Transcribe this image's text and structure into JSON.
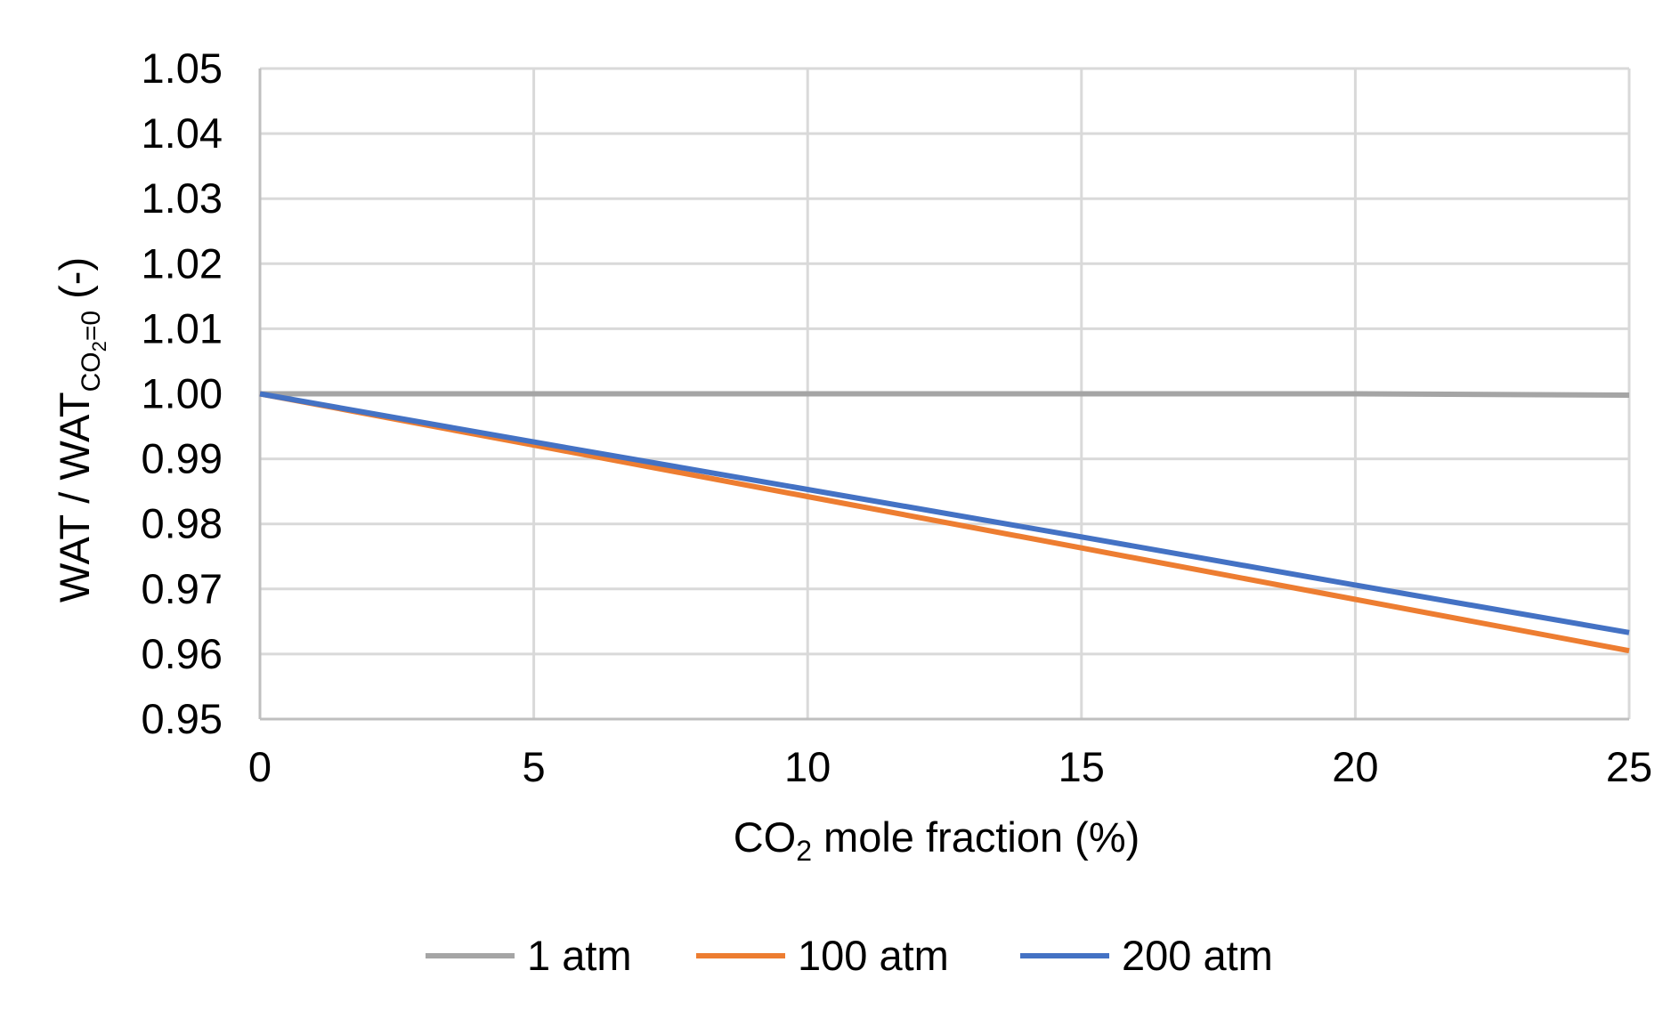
{
  "chart_data": {
    "type": "line",
    "title": "",
    "xlabel": {
      "prefix": "CO",
      "subscript": "2",
      "suffix": " mole fraction (%)"
    },
    "ylabel": {
      "prefix": "WAT / WAT",
      "subscript_main": "CO",
      "subscript_sub": "2",
      "subscript_tail": "=0",
      "suffix": " (-)"
    },
    "xlim": [
      0,
      25
    ],
    "ylim": [
      0.95,
      1.05
    ],
    "x_ticks": [
      0,
      5,
      10,
      15,
      20,
      25
    ],
    "x_tick_labels": [
      "0",
      "5",
      "10",
      "15",
      "20",
      "25"
    ],
    "y_ticks": [
      0.95,
      0.96,
      0.97,
      0.98,
      0.99,
      1.0,
      1.01,
      1.02,
      1.03,
      1.04,
      1.05
    ],
    "y_tick_labels": [
      "0.95",
      "0.96",
      "0.97",
      "0.98",
      "0.99",
      "1.00",
      "1.01",
      "1.02",
      "1.03",
      "1.04",
      "1.05"
    ],
    "grid": true,
    "legend_position": "bottom",
    "series": [
      {
        "name": "1 atm",
        "color": "#A5A5A5",
        "x": [
          0,
          5,
          10,
          15,
          20,
          25
        ],
        "values": [
          1.0,
          1.0,
          1.0,
          1.0,
          1.0,
          0.9998
        ]
      },
      {
        "name": "100 atm",
        "color": "#ED7D31",
        "x": [
          0,
          5,
          10,
          15,
          20,
          25
        ],
        "values": [
          1.0,
          0.9921,
          0.9842,
          0.9763,
          0.9684,
          0.9605
        ]
      },
      {
        "name": "200 atm",
        "color": "#4472C4",
        "x": [
          0,
          5,
          10,
          15,
          20,
          25
        ],
        "values": [
          1.0,
          0.9926,
          0.9853,
          0.978,
          0.9706,
          0.9633
        ]
      }
    ]
  }
}
